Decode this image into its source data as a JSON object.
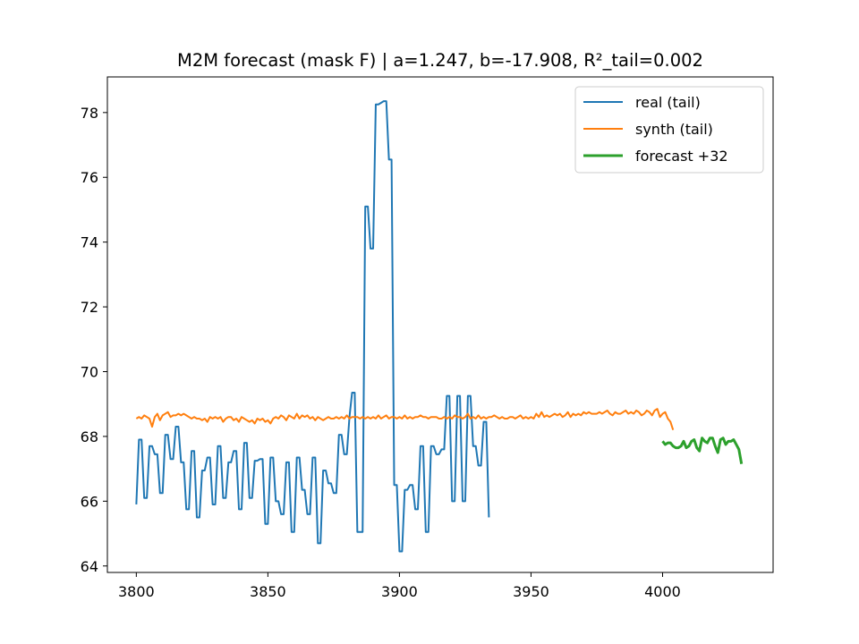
{
  "chart_data": {
    "type": "line",
    "title": "M2M forecast (mask F) | a=1.247, b=-17.908, R²_tail=0.002",
    "xlabel": "",
    "ylabel": "",
    "xlim": [
      3789,
      4042
    ],
    "ylim": [
      63.8,
      79.1
    ],
    "xticks": [
      3800,
      3850,
      3900,
      3950,
      4000
    ],
    "yticks": [
      64,
      66,
      68,
      70,
      72,
      74,
      76,
      78
    ],
    "grid": false,
    "legend_position": "upper right",
    "series": [
      {
        "name": "real (tail)",
        "color": "#1f77b4",
        "x_start": 3800,
        "x_step": 1,
        "values": [
          65.9,
          67.9,
          67.9,
          66.1,
          66.1,
          67.7,
          67.7,
          67.45,
          67.45,
          66.25,
          66.25,
          68.05,
          68.05,
          67.3,
          67.3,
          68.3,
          68.3,
          67.2,
          67.2,
          65.75,
          65.75,
          67.55,
          67.55,
          65.5,
          65.5,
          66.95,
          66.95,
          67.35,
          67.35,
          65.9,
          65.9,
          67.7,
          67.7,
          66.1,
          66.1,
          67.2,
          67.2,
          67.55,
          67.55,
          65.75,
          65.75,
          67.8,
          67.8,
          66.1,
          66.1,
          67.25,
          67.25,
          67.3,
          67.3,
          65.3,
          65.3,
          67.35,
          67.35,
          66.0,
          66.0,
          65.6,
          65.6,
          67.2,
          67.2,
          65.05,
          65.05,
          67.35,
          67.35,
          66.35,
          66.35,
          65.6,
          65.6,
          67.35,
          67.35,
          64.7,
          64.7,
          66.95,
          66.95,
          66.55,
          66.55,
          66.25,
          66.25,
          68.05,
          68.05,
          67.45,
          67.45,
          68.6,
          69.35,
          69.35,
          65.05,
          65.05,
          65.05,
          75.1,
          75.1,
          73.8,
          73.8,
          78.25,
          78.25,
          78.3,
          78.35,
          78.35,
          76.55,
          76.55,
          66.5,
          66.5,
          64.45,
          64.45,
          66.35,
          66.35,
          66.5,
          66.5,
          65.75,
          65.75,
          67.7,
          67.7,
          65.05,
          65.05,
          67.7,
          67.7,
          67.45,
          67.45,
          67.6,
          67.6,
          69.25,
          69.25,
          66.0,
          66.0,
          69.25,
          69.25,
          66.0,
          66.0,
          69.25,
          69.25,
          67.7,
          67.7,
          67.1,
          67.1,
          68.45,
          68.45,
          65.5
        ]
      },
      {
        "name": "synth (tail)",
        "color": "#ff7f0e",
        "x_start": 3800,
        "x_step": 1,
        "values": [
          68.55,
          68.6,
          68.55,
          68.65,
          68.6,
          68.55,
          68.3,
          68.6,
          68.7,
          68.5,
          68.65,
          68.7,
          68.75,
          68.6,
          68.65,
          68.65,
          68.7,
          68.65,
          68.7,
          68.65,
          68.6,
          68.55,
          68.6,
          68.55,
          68.55,
          68.5,
          68.55,
          68.45,
          68.6,
          68.55,
          68.6,
          68.55,
          68.6,
          68.45,
          68.55,
          68.6,
          68.6,
          68.5,
          68.55,
          68.45,
          68.6,
          68.55,
          68.5,
          68.45,
          68.5,
          68.4,
          68.55,
          68.5,
          68.55,
          68.45,
          68.5,
          68.4,
          68.55,
          68.6,
          68.55,
          68.65,
          68.6,
          68.5,
          68.65,
          68.6,
          68.55,
          68.7,
          68.55,
          68.65,
          68.6,
          68.65,
          68.55,
          68.6,
          68.5,
          68.6,
          68.55,
          68.5,
          68.55,
          68.6,
          68.55,
          68.55,
          68.6,
          68.55,
          68.6,
          68.55,
          68.65,
          68.55,
          68.6,
          68.6,
          68.6,
          68.55,
          68.6,
          68.55,
          68.6,
          68.55,
          68.6,
          68.55,
          68.65,
          68.55,
          68.6,
          68.65,
          68.55,
          68.6,
          68.6,
          68.55,
          68.6,
          68.55,
          68.65,
          68.55,
          68.6,
          68.55,
          68.6,
          68.6,
          68.65,
          68.6,
          68.6,
          68.55,
          68.6,
          68.6,
          68.6,
          68.55,
          68.55,
          68.6,
          68.55,
          68.6,
          68.55,
          68.65,
          68.6,
          68.6,
          68.55,
          68.6,
          68.7,
          68.55,
          68.6,
          68.55,
          68.65,
          68.55,
          68.6,
          68.55,
          68.6,
          68.6,
          68.65,
          68.6,
          68.55,
          68.6,
          68.55,
          68.55,
          68.6,
          68.6,
          68.55,
          68.6,
          68.65,
          68.55,
          68.6,
          68.55,
          68.6,
          68.55,
          68.7,
          68.6,
          68.75,
          68.6,
          68.65,
          68.6,
          68.65,
          68.7,
          68.65,
          68.7,
          68.6,
          68.65,
          68.75,
          68.6,
          68.7,
          68.65,
          68.7,
          68.65,
          68.75,
          68.7,
          68.75,
          68.7,
          68.7,
          68.7,
          68.75,
          68.7,
          68.75,
          68.8,
          68.7,
          68.65,
          68.75,
          68.7,
          68.7,
          68.75,
          68.8,
          68.7,
          68.75,
          68.7,
          68.8,
          68.75,
          68.65,
          68.7,
          68.8,
          68.75,
          68.65,
          68.8,
          68.85,
          68.6,
          68.7,
          68.75,
          68.55,
          68.45,
          68.2
        ],
        "x_override_note": ""
      },
      {
        "name": "forecast +32",
        "color": "#2ca02c",
        "x_start": 4000,
        "x_step": 1,
        "values": [
          67.85,
          67.75,
          67.8,
          67.8,
          67.7,
          67.65,
          67.65,
          67.7,
          67.85,
          67.65,
          67.7,
          67.85,
          67.9,
          67.65,
          67.55,
          67.95,
          67.85,
          67.8,
          67.95,
          67.95,
          67.7,
          67.5,
          67.9,
          67.95,
          67.75,
          67.85,
          67.85,
          67.9,
          67.75,
          67.6,
          67.15
        ]
      }
    ],
    "axes_bbox_px": {}
  }
}
